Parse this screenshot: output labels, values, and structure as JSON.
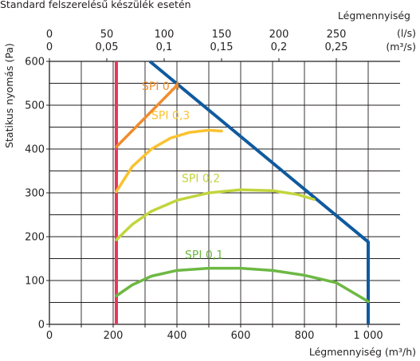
{
  "chart_data": {
    "type": "line",
    "subtitle": "Standard felszerelésű készülék esetén",
    "title_top_axis": "Légmennyiség",
    "xlabel": "Légmennyiség (m³/h)",
    "ylabel": "Statikus nyomás (Pa)",
    "xlim": [
      0,
      1100
    ],
    "ylim": [
      0,
      600
    ],
    "x_ticks": [
      "0",
      "200",
      "400",
      "600",
      "800",
      "1 000"
    ],
    "y_ticks": [
      "0",
      "100",
      "200",
      "300",
      "400",
      "500",
      "600"
    ],
    "top_ticks_ls": [
      "0",
      "50",
      "100",
      "150",
      "200",
      "250"
    ],
    "top_ticks_m3s": [
      "0",
      "0,05",
      "0,1",
      "0,15",
      "0,2",
      "0,25"
    ],
    "top_unit_ls": "(l/s)",
    "top_unit_m3s": "(m³/s)",
    "grid": true,
    "colors": {
      "limit_min": "#e8385a",
      "limit_max": "#0f5a9e",
      "spi_04": "#f08c2e",
      "spi_03": "#fbc22e",
      "spi_02": "#c2d53c",
      "spi_01": "#6db843"
    },
    "series": [
      {
        "id": "min_flow_limit",
        "color_key": "limit_min",
        "x": [
          210,
          210
        ],
        "y": [
          0,
          600
        ]
      },
      {
        "id": "max_limit",
        "color_key": "limit_max",
        "x": [
          315,
          1000,
          1000
        ],
        "y": [
          600,
          188,
          0
        ]
      },
      {
        "name": "SPI 0,4",
        "color_key": "spi_04",
        "x": [
          210,
          400
        ],
        "y": [
          405,
          545
        ]
      },
      {
        "name": "SPI 0,3",
        "color_key": "spi_03",
        "x": [
          210,
          260,
          320,
          380,
          440,
          500,
          540
        ],
        "y": [
          303,
          360,
          400,
          425,
          438,
          443,
          441
        ]
      },
      {
        "name": "SPI 0,2",
        "color_key": "spi_02",
        "x": [
          210,
          260,
          320,
          400,
          500,
          600,
          700,
          780,
          830
        ],
        "y": [
          193,
          228,
          258,
          283,
          300,
          307,
          305,
          296,
          285
        ]
      },
      {
        "name": "SPI 0,1",
        "color_key": "spi_01",
        "x": [
          210,
          260,
          320,
          400,
          500,
          600,
          700,
          800,
          900,
          1000
        ],
        "y": [
          65,
          90,
          110,
          123,
          128,
          128,
          123,
          112,
          95,
          52
        ]
      }
    ]
  }
}
